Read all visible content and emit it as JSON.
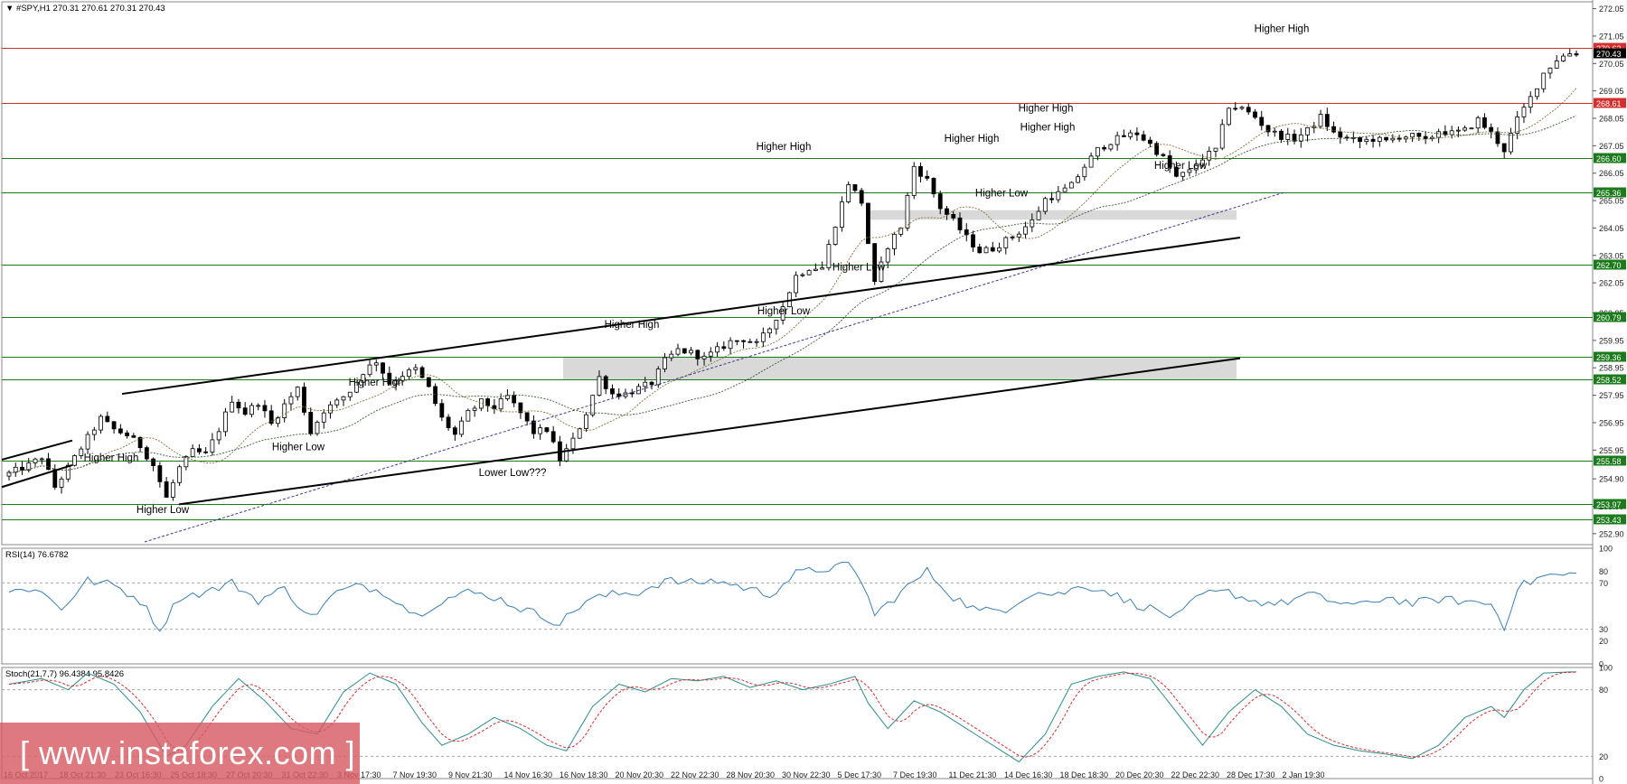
{
  "chart_data": [
    {
      "type": "candlestick",
      "header": "▼ #SPY,H1  270.31 270.61 270.31 270.43",
      "symbol": "#SPY,H1",
      "ohlc_last": {
        "open": 270.31,
        "high": 270.61,
        "low": 270.31,
        "close": 270.43
      },
      "ylim": [
        252.5,
        272.3
      ],
      "y_ticks": [
        272.05,
        271.05,
        270.05,
        269.05,
        268.05,
        267.05,
        266.05,
        265.05,
        264.05,
        263.05,
        262.05,
        260.95,
        259.95,
        258.95,
        257.95,
        256.95,
        255.95,
        254.9,
        253.9,
        252.9
      ],
      "x_ticks": [
        "16 Oct 2017",
        "18 Oct 21:30",
        "23 Oct 16:30",
        "25 Oct 18:30",
        "27 Oct 20:30",
        "31 Oct 22:30",
        "3 Nov 17:30",
        "7 Nov 19:30",
        "9 Nov 21:30",
        "14 Nov 16:30",
        "16 Nov 18:30",
        "20 Nov 20:30",
        "22 Nov 22:30",
        "28 Nov 20:30",
        "30 Nov 22:30",
        "5 Dec 17:30",
        "7 Dec 19:30",
        "11 Dec 21:30",
        "14 Dec 16:30",
        "18 Dec 18:30",
        "20 Dec 20:30",
        "22 Dec 22:30",
        "28 Dec 17:30",
        "2 Jan 19:30"
      ],
      "price_levels": [
        {
          "value": 270.62,
          "label": "270.62",
          "color": "#d32f2f"
        },
        {
          "value": 270.43,
          "label": "270.43",
          "color": "#000000"
        },
        {
          "value": 268.61,
          "label": "268.61",
          "color": "#d32f2f"
        },
        {
          "value": 266.6,
          "label": "266.60",
          "color": "#1b7a1b"
        },
        {
          "value": 265.36,
          "label": "265.36",
          "color": "#1b7a1b"
        },
        {
          "value": 262.7,
          "label": "262.70",
          "color": "#1b7a1b"
        },
        {
          "value": 260.79,
          "label": "260.79",
          "color": "#1b7a1b"
        },
        {
          "value": 259.36,
          "label": "259.36",
          "color": "#1b7a1b"
        },
        {
          "value": 258.52,
          "label": "258.52",
          "color": "#1b7a1b"
        },
        {
          "value": 255.58,
          "label": "255.58",
          "color": "#1b7a1b"
        },
        {
          "value": 253.97,
          "label": "253.97",
          "color": "#1b7a1b"
        },
        {
          "value": 253.43,
          "label": "253.43",
          "color": "#1b7a1b"
        }
      ],
      "annotations": [
        "Higher High",
        "Higher Low",
        "Higher Low",
        "Higher High",
        "Higher High",
        "Lower Low???",
        "Higher High",
        "Higher High",
        "Higher Low",
        "Higher Low",
        "Higher High",
        "Higher Low",
        "Higher High",
        "Higher Low",
        "Higher High"
      ],
      "price_anchors": [
        [
          0,
          255.1
        ],
        [
          3,
          255.4
        ],
        [
          5,
          255.7
        ],
        [
          7,
          254.6
        ],
        [
          9,
          255.3
        ],
        [
          12,
          256.4
        ],
        [
          14,
          257.1
        ],
        [
          16,
          256.7
        ],
        [
          18,
          256.5
        ],
        [
          20,
          256.1
        ],
        [
          22,
          255.4
        ],
        [
          24,
          254.2
        ],
        [
          26,
          255.3
        ],
        [
          28,
          255.9
        ],
        [
          30,
          255.8
        ],
        [
          32,
          256.7
        ],
        [
          34,
          257.8
        ],
        [
          36,
          257.3
        ],
        [
          38,
          257.7
        ],
        [
          40,
          256.9
        ],
        [
          42,
          257.6
        ],
        [
          44,
          258.2
        ],
        [
          46,
          256.6
        ],
        [
          48,
          257.4
        ],
        [
          50,
          257.7
        ],
        [
          52,
          258.1
        ],
        [
          54,
          258.8
        ],
        [
          56,
          259.2
        ],
        [
          58,
          258.4
        ],
        [
          60,
          258.7
        ],
        [
          62,
          258.9
        ],
        [
          64,
          258.2
        ],
        [
          66,
          257.1
        ],
        [
          68,
          256.5
        ],
        [
          70,
          257.3
        ],
        [
          72,
          257.7
        ],
        [
          74,
          257.5
        ],
        [
          76,
          257.9
        ],
        [
          78,
          257.3
        ],
        [
          80,
          256.6
        ],
        [
          82,
          256.7
        ],
        [
          84,
          255.6
        ],
        [
          86,
          256.3
        ],
        [
          88,
          257.3
        ],
        [
          90,
          258.6
        ],
        [
          92,
          258.0
        ],
        [
          94,
          258.0
        ],
        [
          96,
          258.2
        ],
        [
          98,
          258.4
        ],
        [
          100,
          259.2
        ],
        [
          102,
          259.6
        ],
        [
          104,
          259.5
        ],
        [
          106,
          259.3
        ],
        [
          108,
          259.6
        ],
        [
          110,
          259.9
        ],
        [
          112,
          260.0
        ],
        [
          114,
          259.8
        ],
        [
          116,
          260.4
        ],
        [
          118,
          261.2
        ],
        [
          120,
          262.3
        ],
        [
          122,
          262.6
        ],
        [
          124,
          262.6
        ],
        [
          126,
          264.2
        ],
        [
          128,
          265.7
        ],
        [
          130,
          265.0
        ],
        [
          132,
          262.0
        ],
        [
          134,
          263.4
        ],
        [
          136,
          264.1
        ],
        [
          138,
          266.3
        ],
        [
          140,
          265.8
        ],
        [
          142,
          264.8
        ],
        [
          144,
          264.3
        ],
        [
          146,
          263.7
        ],
        [
          148,
          263.2
        ],
        [
          150,
          263.3
        ],
        [
          152,
          263.6
        ],
        [
          154,
          263.9
        ],
        [
          156,
          264.3
        ],
        [
          158,
          265.1
        ],
        [
          160,
          265.3
        ],
        [
          162,
          265.6
        ],
        [
          164,
          266.3
        ],
        [
          166,
          266.9
        ],
        [
          168,
          267.2
        ],
        [
          170,
          267.4
        ],
        [
          172,
          267.5
        ],
        [
          174,
          267.1
        ],
        [
          176,
          266.6
        ],
        [
          178,
          265.9
        ],
        [
          180,
          266.1
        ],
        [
          182,
          266.6
        ],
        [
          184,
          266.9
        ],
        [
          186,
          268.5
        ],
        [
          188,
          268.4
        ],
        [
          190,
          268.1
        ],
        [
          192,
          267.6
        ],
        [
          194,
          267.4
        ],
        [
          196,
          267.3
        ],
        [
          198,
          267.6
        ],
        [
          200,
          268.1
        ],
        [
          202,
          267.5
        ],
        [
          204,
          267.3
        ],
        [
          206,
          267.2
        ],
        [
          208,
          267.3
        ],
        [
          210,
          267.2
        ],
        [
          212,
          267.4
        ],
        [
          214,
          267.4
        ],
        [
          216,
          267.2
        ],
        [
          218,
          267.6
        ],
        [
          220,
          267.5
        ],
        [
          222,
          267.6
        ],
        [
          224,
          268.0
        ],
        [
          226,
          267.5
        ],
        [
          228,
          266.9
        ],
        [
          230,
          268.0
        ],
        [
          232,
          268.8
        ],
        [
          234,
          269.7
        ],
        [
          236,
          270.2
        ],
        [
          238,
          270.43
        ]
      ]
    },
    {
      "type": "line",
      "label": "RSI(14) 76.6782",
      "indicator": "RSI(14)",
      "last_value": 76.6782,
      "ylim": [
        0,
        100
      ],
      "y_ticks": [
        100,
        80,
        70,
        30,
        20,
        0
      ],
      "anchors": [
        [
          0,
          62
        ],
        [
          4,
          66
        ],
        [
          8,
          48
        ],
        [
          12,
          72
        ],
        [
          16,
          68
        ],
        [
          20,
          55
        ],
        [
          23,
          30
        ],
        [
          26,
          58
        ],
        [
          30,
          62
        ],
        [
          34,
          70
        ],
        [
          38,
          55
        ],
        [
          42,
          65
        ],
        [
          46,
          40
        ],
        [
          50,
          62
        ],
        [
          54,
          68
        ],
        [
          58,
          60
        ],
        [
          62,
          42
        ],
        [
          66,
          55
        ],
        [
          70,
          62
        ],
        [
          74,
          58
        ],
        [
          78,
          48
        ],
        [
          82,
          40
        ],
        [
          84,
          35
        ],
        [
          88,
          55
        ],
        [
          92,
          60
        ],
        [
          96,
          62
        ],
        [
          100,
          72
        ],
        [
          104,
          70
        ],
        [
          108,
          72
        ],
        [
          112,
          66
        ],
        [
          116,
          60
        ],
        [
          120,
          78
        ],
        [
          124,
          82
        ],
        [
          128,
          85
        ],
        [
          130,
          72
        ],
        [
          132,
          42
        ],
        [
          136,
          62
        ],
        [
          140,
          80
        ],
        [
          144,
          58
        ],
        [
          148,
          45
        ],
        [
          152,
          48
        ],
        [
          156,
          62
        ],
        [
          160,
          60
        ],
        [
          164,
          68
        ],
        [
          168,
          62
        ],
        [
          170,
          55
        ],
        [
          174,
          48
        ],
        [
          178,
          40
        ],
        [
          182,
          60
        ],
        [
          186,
          62
        ],
        [
          190,
          54
        ],
        [
          194,
          52
        ],
        [
          198,
          60
        ],
        [
          202,
          54
        ],
        [
          206,
          50
        ],
        [
          210,
          58
        ],
        [
          214,
          52
        ],
        [
          218,
          56
        ],
        [
          222,
          54
        ],
        [
          226,
          52
        ],
        [
          228,
          32
        ],
        [
          230,
          66
        ],
        [
          234,
          76
        ],
        [
          238,
          77
        ]
      ]
    },
    {
      "type": "line",
      "label": "Stoch(21,7,7) 96.4384 95.8426",
      "indicator": "Stoch(21,7,7)",
      "main_last": 96.4384,
      "signal_last": 95.8426,
      "ylim": [
        0,
        100
      ],
      "y_ticks": [
        100,
        80,
        20,
        0
      ],
      "anchors": [
        [
          0,
          85
        ],
        [
          5,
          90
        ],
        [
          9,
          80
        ],
        [
          12,
          95
        ],
        [
          16,
          85
        ],
        [
          20,
          60
        ],
        [
          24,
          20
        ],
        [
          27,
          30
        ],
        [
          31,
          65
        ],
        [
          35,
          90
        ],
        [
          39,
          70
        ],
        [
          43,
          45
        ],
        [
          47,
          40
        ],
        [
          51,
          78
        ],
        [
          55,
          95
        ],
        [
          59,
          85
        ],
        [
          63,
          50
        ],
        [
          66,
          30
        ],
        [
          70,
          40
        ],
        [
          74,
          55
        ],
        [
          78,
          45
        ],
        [
          82,
          30
        ],
        [
          85,
          25
        ],
        [
          89,
          65
        ],
        [
          93,
          85
        ],
        [
          97,
          78
        ],
        [
          101,
          90
        ],
        [
          105,
          88
        ],
        [
          109,
          92
        ],
        [
          113,
          82
        ],
        [
          117,
          88
        ],
        [
          121,
          80
        ],
        [
          125,
          85
        ],
        [
          129,
          92
        ],
        [
          131,
          68
        ],
        [
          134,
          45
        ],
        [
          138,
          70
        ],
        [
          142,
          60
        ],
        [
          146,
          45
        ],
        [
          150,
          30
        ],
        [
          154,
          15
        ],
        [
          158,
          40
        ],
        [
          162,
          85
        ],
        [
          166,
          92
        ],
        [
          170,
          96
        ],
        [
          174,
          90
        ],
        [
          178,
          60
        ],
        [
          182,
          30
        ],
        [
          186,
          60
        ],
        [
          190,
          80
        ],
        [
          194,
          65
        ],
        [
          198,
          40
        ],
        [
          202,
          30
        ],
        [
          206,
          25
        ],
        [
          210,
          22
        ],
        [
          214,
          18
        ],
        [
          218,
          30
        ],
        [
          222,
          55
        ],
        [
          226,
          65
        ],
        [
          228,
          55
        ],
        [
          231,
          80
        ],
        [
          234,
          95
        ],
        [
          238,
          96
        ]
      ]
    }
  ],
  "watermark": "[ www.instaforex.com ]"
}
